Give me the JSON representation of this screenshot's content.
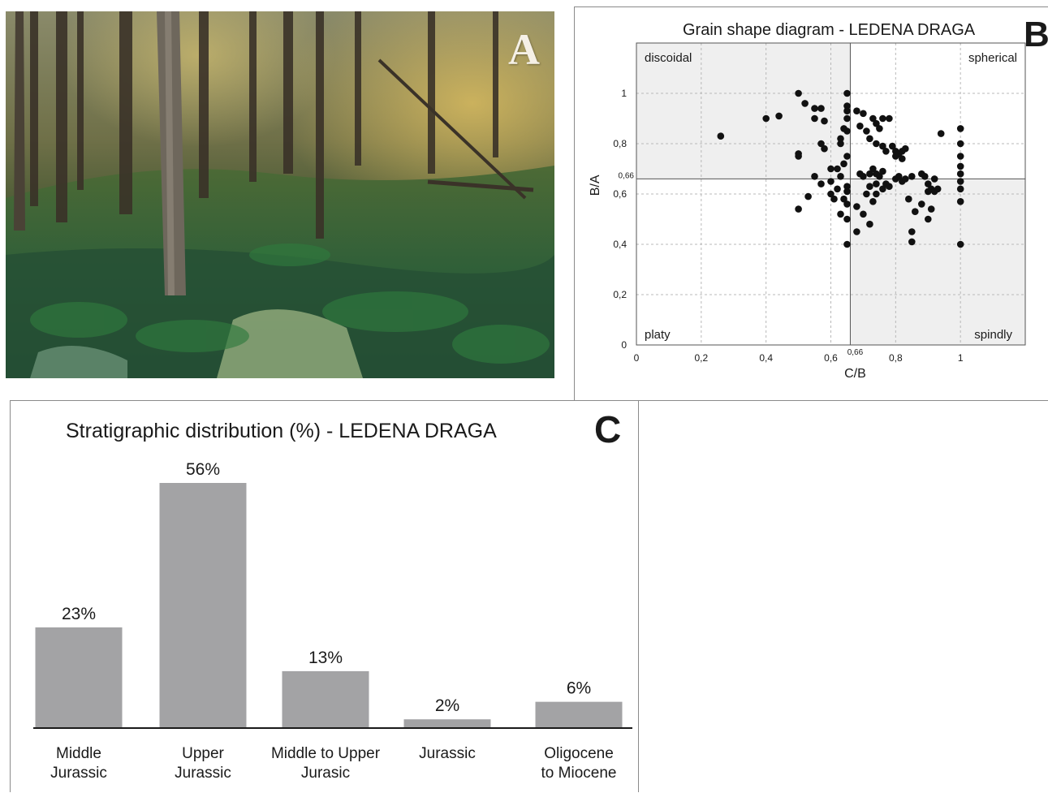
{
  "panel_a": {
    "letter": "A",
    "description_icon": "forest-photo"
  },
  "panel_b": {
    "letter": "B"
  },
  "panel_c": {
    "letter": "C"
  },
  "chart_data": [
    {
      "type": "scatter",
      "title": "Grain shape diagram - LEDENA DRAGA",
      "xlabel": "C/B",
      "ylabel": "B/A",
      "xlim": [
        0,
        1.2
      ],
      "ylim": [
        0,
        1.2
      ],
      "x_ticks": [
        "0",
        "0,2",
        "0,4",
        "0,6",
        "0,8",
        "1"
      ],
      "x_tick_values": [
        0,
        0.2,
        0.4,
        0.6,
        0.8,
        1
      ],
      "y_ticks": [
        "0",
        "0,2",
        "0,4",
        "0,6",
        "0,8",
        "1"
      ],
      "y_tick_values": [
        0,
        0.2,
        0.4,
        0.6,
        0.8,
        1
      ],
      "threshold_label": "0,66",
      "threshold": 0.66,
      "quadrants": {
        "top_left": "discoidal",
        "top_right": "spherical",
        "bottom_left": "platy",
        "bottom_right": "spindly"
      },
      "grid": true,
      "shaded_color": "#efefef",
      "point_color": "#111111",
      "points": [
        [
          0.26,
          0.83
        ],
        [
          0.4,
          0.9
        ],
        [
          0.44,
          0.91
        ],
        [
          0.5,
          1.0
        ],
        [
          0.52,
          0.96
        ],
        [
          0.55,
          0.94
        ],
        [
          0.57,
          0.94
        ],
        [
          0.55,
          0.9
        ],
        [
          0.58,
          0.89
        ],
        [
          0.5,
          0.76
        ],
        [
          0.5,
          0.75
        ],
        [
          0.57,
          0.8
        ],
        [
          0.58,
          0.78
        ],
        [
          0.55,
          0.67
        ],
        [
          0.57,
          0.64
        ],
        [
          0.6,
          0.65
        ],
        [
          0.6,
          0.7
        ],
        [
          0.62,
          0.7
        ],
        [
          0.5,
          0.54
        ],
        [
          0.53,
          0.59
        ],
        [
          0.61,
          0.58
        ],
        [
          0.6,
          0.6
        ],
        [
          0.62,
          0.62
        ],
        [
          0.63,
          0.52
        ],
        [
          0.65,
          0.5
        ],
        [
          0.65,
          0.4
        ],
        [
          0.65,
          1.0
        ],
        [
          0.65,
          0.95
        ],
        [
          0.65,
          0.93
        ],
        [
          0.65,
          0.9
        ],
        [
          0.65,
          0.85
        ],
        [
          0.64,
          0.86
        ],
        [
          0.63,
          0.8
        ],
        [
          0.63,
          0.82
        ],
        [
          0.65,
          0.75
        ],
        [
          0.64,
          0.72
        ],
        [
          0.63,
          0.67
        ],
        [
          0.65,
          0.63
        ],
        [
          0.65,
          0.61
        ],
        [
          0.64,
          0.58
        ],
        [
          0.65,
          0.56
        ],
        [
          0.68,
          0.93
        ],
        [
          0.69,
          0.87
        ],
        [
          0.7,
          0.92
        ],
        [
          0.71,
          0.85
        ],
        [
          0.72,
          0.82
        ],
        [
          0.73,
          0.9
        ],
        [
          0.74,
          0.88
        ],
        [
          0.75,
          0.86
        ],
        [
          0.76,
          0.9
        ],
        [
          0.78,
          0.9
        ],
        [
          0.74,
          0.8
        ],
        [
          0.76,
          0.79
        ],
        [
          0.77,
          0.77
        ],
        [
          0.79,
          0.79
        ],
        [
          0.8,
          0.77
        ],
        [
          0.81,
          0.76
        ],
        [
          0.82,
          0.77
        ],
        [
          0.83,
          0.78
        ],
        [
          0.8,
          0.75
        ],
        [
          0.82,
          0.74
        ],
        [
          0.69,
          0.68
        ],
        [
          0.7,
          0.67
        ],
        [
          0.72,
          0.68
        ],
        [
          0.73,
          0.7
        ],
        [
          0.74,
          0.68
        ],
        [
          0.75,
          0.67
        ],
        [
          0.76,
          0.69
        ],
        [
          0.74,
          0.64
        ],
        [
          0.72,
          0.63
        ],
        [
          0.71,
          0.6
        ],
        [
          0.74,
          0.6
        ],
        [
          0.76,
          0.62
        ],
        [
          0.77,
          0.64
        ],
        [
          0.78,
          0.63
        ],
        [
          0.8,
          0.66
        ],
        [
          0.81,
          0.67
        ],
        [
          0.82,
          0.65
        ],
        [
          0.83,
          0.66
        ],
        [
          0.85,
          0.67
        ],
        [
          0.88,
          0.68
        ],
        [
          0.89,
          0.67
        ],
        [
          0.9,
          0.64
        ],
        [
          0.91,
          0.62
        ],
        [
          0.9,
          0.61
        ],
        [
          0.92,
          0.61
        ],
        [
          0.92,
          0.66
        ],
        [
          0.94,
          0.84
        ],
        [
          0.68,
          0.55
        ],
        [
          0.7,
          0.52
        ],
        [
          0.72,
          0.48
        ],
        [
          0.68,
          0.45
        ],
        [
          0.73,
          0.57
        ],
        [
          0.84,
          0.58
        ],
        [
          0.86,
          0.53
        ],
        [
          0.88,
          0.56
        ],
        [
          0.9,
          0.5
        ],
        [
          0.91,
          0.54
        ],
        [
          0.85,
          0.45
        ],
        [
          0.85,
          0.41
        ],
        [
          1.0,
          0.86
        ],
        [
          1.0,
          0.8
        ],
        [
          1.0,
          0.75
        ],
        [
          1.0,
          0.71
        ],
        [
          1.0,
          0.68
        ],
        [
          1.0,
          0.65
        ],
        [
          1.0,
          0.62
        ],
        [
          1.0,
          0.57
        ],
        [
          1.0,
          0.4
        ],
        [
          0.93,
          0.62
        ]
      ]
    },
    {
      "type": "bar",
      "title": "Stratigraphic distribution (%) - LEDENA DRAGA",
      "categories": [
        [
          "Middle",
          "Jurassic"
        ],
        [
          "Upper",
          "Jurassic"
        ],
        [
          "Middle to Upper",
          "Jurasic"
        ],
        [
          "Jurassic"
        ],
        [
          "Oligocene",
          "to Miocene"
        ]
      ],
      "values": [
        23,
        56,
        13,
        2,
        6
      ],
      "value_labels": [
        "23%",
        "56%",
        "13%",
        "2%",
        "6%"
      ],
      "ylim": [
        0,
        56
      ],
      "bar_color": "#a3a3a5",
      "grid": false
    }
  ]
}
